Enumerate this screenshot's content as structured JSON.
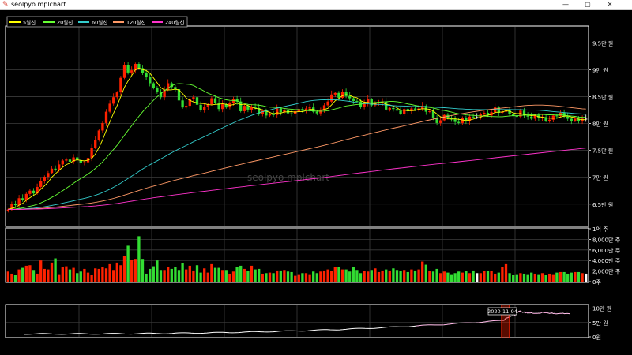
{
  "window": {
    "title": "seolpyo mplchart",
    "minimize": "—",
    "maximize": "▢",
    "close": "✕"
  },
  "colors": {
    "up": "#ff2200",
    "down": "#33dd33",
    "flat": "#ffffff",
    "ma5": "#ffff00",
    "ma20": "#66ff33",
    "ma60": "#33cccc",
    "ma120": "#ff9966",
    "ma240": "#ff33cc"
  },
  "chart_data": {
    "type": "candlestick",
    "watermark": "seolpyo mplchart",
    "legend": {
      "placement": "top-left",
      "entries": [
        "5일선",
        "20일선",
        "60일선",
        "120일선",
        "240일선"
      ]
    },
    "price_axis": {
      "ylim": [
        61000,
        98000
      ],
      "ticks": [
        65000,
        70000,
        75000,
        80000,
        85000,
        90000,
        95000
      ],
      "tick_labels": [
        "6.5만 원",
        "7만 원",
        "7.5만 원",
        "8만 원",
        "8.5만 원",
        "9만 원",
        "9.5만 원"
      ]
    },
    "volume_axis": {
      "ylim": [
        0,
        100000000
      ],
      "ticks": [
        0,
        20000000,
        40000000,
        60000000,
        80000000,
        100000000
      ],
      "tick_labels": [
        "0주",
        "2,000만 주",
        "4,000만 주",
        "6,000만 주",
        "8,000만 주",
        "1억 주"
      ]
    },
    "slider_axis": {
      "ylim": [
        0,
        110000
      ],
      "ticks": [
        0,
        50000,
        100000
      ],
      "tick_labels": [
        "0원",
        "5만 원",
        "10만 원"
      ],
      "selected_label": "2020-11-04"
    },
    "closes": [
      64000,
      65100,
      64800,
      66100,
      65700,
      66900,
      67500,
      67000,
      68200,
      69300,
      70100,
      70800,
      71600,
      71400,
      72400,
      73100,
      73300,
      72900,
      73700,
      73200,
      72600,
      72800,
      73600,
      75500,
      77000,
      78700,
      80100,
      82200,
      83700,
      84900,
      85800,
      88500,
      90900,
      89500,
      89900,
      91100,
      90300,
      89400,
      88600,
      87500,
      86600,
      85900,
      84900,
      86300,
      87500,
      86800,
      86400,
      84300,
      83000,
      83300,
      84600,
      84900,
      83500,
      82500,
      83100,
      83600,
      84700,
      83900,
      82700,
      83600,
      83000,
      83800,
      84500,
      84100,
      82300,
      83300,
      82600,
      83100,
      82900,
      81800,
      82400,
      81500,
      81700,
      81600,
      82800,
      82100,
      82500,
      81900,
      81800,
      82300,
      82700,
      82400,
      82800,
      83000,
      82200,
      81900,
      82600,
      83400,
      84100,
      85400,
      85700,
      84800,
      85900,
      85100,
      84700,
      84200,
      84100,
      83100,
      83800,
      84500,
      83400,
      83800,
      83900,
      84100,
      82600,
      82900,
      82700,
      82400,
      81800,
      82700,
      82300,
      82800,
      82600,
      82800,
      83300,
      82200,
      82300,
      81000,
      80100,
      80600,
      81600,
      81100,
      80800,
      80300,
      80100,
      81100,
      80400,
      81300,
      81200,
      81200,
      81800,
      82000,
      81500,
      82100,
      83000,
      82000,
      82200,
      82500,
      81800,
      81400,
      81300,
      82400,
      81500,
      81300,
      80900,
      81600,
      81000,
      81200,
      80500,
      80700,
      81500,
      81400,
      82000,
      81300,
      80900,
      80500,
      80900,
      80400,
      80900,
      80900
    ],
    "volumes": [
      19000000,
      15000000,
      12000000,
      23000000,
      26000000,
      30000000,
      31000000,
      22000000,
      15000000,
      40000000,
      24000000,
      23000000,
      36000000,
      44000000,
      14000000,
      27000000,
      29000000,
      23000000,
      26000000,
      16000000,
      19000000,
      24000000,
      17000000,
      12000000,
      25000000,
      24000000,
      28000000,
      25000000,
      33000000,
      22000000,
      36000000,
      31000000,
      49000000,
      68000000,
      41000000,
      43000000,
      86000000,
      43000000,
      15000000,
      24000000,
      29000000,
      40000000,
      22000000,
      22000000,
      27000000,
      24000000,
      28000000,
      22000000,
      35000000,
      23000000,
      30000000,
      21000000,
      31000000,
      17000000,
      25000000,
      17000000,
      33000000,
      26000000,
      26000000,
      22000000,
      22000000,
      15000000,
      19000000,
      27000000,
      30000000,
      24000000,
      20000000,
      30000000,
      23000000,
      24000000,
      15000000,
      16000000,
      17000000,
      16000000,
      21000000,
      21000000,
      22000000,
      19000000,
      18000000,
      11000000,
      14000000,
      16000000,
      16000000,
      14000000,
      19000000,
      16000000,
      19000000,
      21000000,
      23000000,
      20000000,
      27000000,
      28000000,
      23000000,
      23000000,
      19000000,
      28000000,
      22000000,
      16000000,
      20000000,
      19000000,
      22000000,
      25000000,
      18000000,
      21000000,
      23000000,
      21000000,
      25000000,
      22000000,
      20000000,
      22000000,
      18000000,
      23000000,
      21000000,
      23000000,
      38000000,
      32000000,
      20000000,
      19000000,
      24000000,
      16000000,
      19000000,
      17000000,
      14000000,
      16000000,
      19000000,
      17000000,
      20000000,
      16000000,
      21000000,
      16000000,
      16000000,
      20000000,
      20000000,
      20000000,
      15000000,
      17000000,
      28000000,
      33000000,
      16000000,
      12000000,
      14000000,
      16000000,
      15000000,
      14000000,
      17000000,
      15000000,
      14000000,
      16000000,
      13000000,
      15000000,
      14000000,
      17000000,
      18000000,
      18000000,
      15000000,
      17000000,
      18000000,
      18000000,
      16000000,
      15000000
    ]
  }
}
